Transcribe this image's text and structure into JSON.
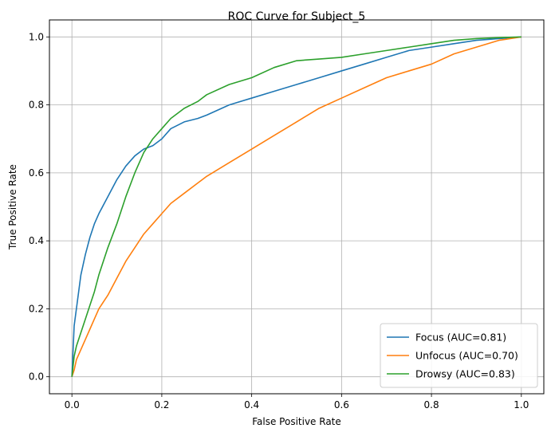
{
  "chart_data": {
    "type": "line",
    "title": "ROC Curve for Subject_5",
    "xlabel": "False Positive Rate",
    "ylabel": "True Positive Rate",
    "xlim": [
      -0.05,
      1.05
    ],
    "ylim": [
      -0.05,
      1.05
    ],
    "xticks": [
      0.0,
      0.2,
      0.4,
      0.6,
      0.8,
      1.0
    ],
    "yticks": [
      0.0,
      0.2,
      0.4,
      0.6,
      0.8,
      1.0
    ],
    "xtick_labels": [
      "0.0",
      "0.2",
      "0.4",
      "0.6",
      "0.8",
      "1.0"
    ],
    "ytick_labels": [
      "0.0",
      "0.2",
      "0.4",
      "0.6",
      "0.8",
      "1.0"
    ],
    "grid": true,
    "legend_position": "lower-right",
    "series": [
      {
        "name": "Focus (AUC=0.81)",
        "color": "#1f77b4",
        "x": [
          0,
          0.005,
          0.01,
          0.02,
          0.03,
          0.04,
          0.05,
          0.06,
          0.08,
          0.1,
          0.12,
          0.14,
          0.16,
          0.18,
          0.2,
          0.22,
          0.25,
          0.28,
          0.3,
          0.35,
          0.4,
          0.45,
          0.5,
          0.55,
          0.6,
          0.65,
          0.7,
          0.75,
          0.8,
          0.85,
          0.9,
          0.95,
          1.0
        ],
        "y": [
          0,
          0.15,
          0.2,
          0.3,
          0.36,
          0.41,
          0.45,
          0.48,
          0.53,
          0.58,
          0.62,
          0.65,
          0.67,
          0.68,
          0.7,
          0.73,
          0.75,
          0.76,
          0.77,
          0.8,
          0.82,
          0.84,
          0.86,
          0.88,
          0.9,
          0.92,
          0.94,
          0.96,
          0.97,
          0.98,
          0.99,
          0.995,
          1.0
        ]
      },
      {
        "name": "Unfocus (AUC=0.70)",
        "color": "#ff7f0e",
        "x": [
          0,
          0.005,
          0.01,
          0.02,
          0.03,
          0.04,
          0.05,
          0.06,
          0.08,
          0.1,
          0.12,
          0.14,
          0.16,
          0.18,
          0.2,
          0.22,
          0.25,
          0.28,
          0.3,
          0.35,
          0.4,
          0.45,
          0.5,
          0.55,
          0.6,
          0.65,
          0.7,
          0.75,
          0.8,
          0.85,
          0.9,
          0.95,
          1.0
        ],
        "y": [
          0,
          0.02,
          0.05,
          0.08,
          0.11,
          0.14,
          0.17,
          0.2,
          0.24,
          0.29,
          0.34,
          0.38,
          0.42,
          0.45,
          0.48,
          0.51,
          0.54,
          0.57,
          0.59,
          0.63,
          0.67,
          0.71,
          0.75,
          0.79,
          0.82,
          0.85,
          0.88,
          0.9,
          0.92,
          0.95,
          0.97,
          0.99,
          1.0
        ]
      },
      {
        "name": "Drowsy (AUC=0.83)",
        "color": "#2ca02c",
        "x": [
          0,
          0.005,
          0.01,
          0.02,
          0.03,
          0.04,
          0.05,
          0.06,
          0.08,
          0.1,
          0.12,
          0.14,
          0.16,
          0.18,
          0.2,
          0.22,
          0.25,
          0.28,
          0.3,
          0.35,
          0.4,
          0.45,
          0.5,
          0.55,
          0.6,
          0.65,
          0.7,
          0.75,
          0.8,
          0.85,
          0.9,
          0.95,
          1.0
        ],
        "y": [
          0,
          0.06,
          0.09,
          0.13,
          0.17,
          0.21,
          0.25,
          0.3,
          0.38,
          0.45,
          0.53,
          0.6,
          0.66,
          0.7,
          0.73,
          0.76,
          0.79,
          0.81,
          0.83,
          0.86,
          0.88,
          0.91,
          0.93,
          0.935,
          0.94,
          0.95,
          0.96,
          0.97,
          0.98,
          0.99,
          0.995,
          0.998,
          1.0
        ]
      }
    ]
  }
}
